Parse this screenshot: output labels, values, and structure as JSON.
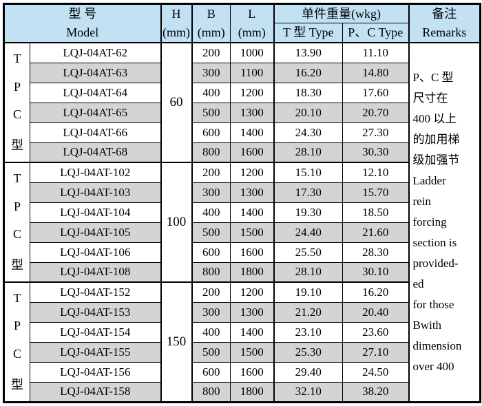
{
  "header": {
    "model_zh": "型  号",
    "model_en": "Model",
    "h_sym": "H",
    "h_unit": "(mm)",
    "b_sym": "B",
    "b_unit": "(mm)",
    "l_sym": "L",
    "l_unit": "(mm)",
    "weight": "单件重量(wkg)",
    "weight_t": "T 型 Type",
    "weight_pc": "P、C Type",
    "remarks_zh": "备注",
    "remarks_en": "Remarks"
  },
  "colors": {
    "header_bg": "#c2e2f4",
    "row_alt_bg": "#d4d4d4",
    "border": "#000000"
  },
  "groups": [
    {
      "type_label": [
        "T",
        "P",
        "C",
        "型"
      ],
      "h": "60",
      "rows": [
        {
          "model": "LQJ-04AT-62",
          "b": "200",
          "l": "1000",
          "t": "13.90",
          "pc": "11.10"
        },
        {
          "model": "LQJ-04AT-63",
          "b": "300",
          "l": "1100",
          "t": "16.20",
          "pc": "14.80"
        },
        {
          "model": "LQJ-04AT-64",
          "b": "400",
          "l": "1200",
          "t": "18.30",
          "pc": "17.60"
        },
        {
          "model": "LQJ-04AT-65",
          "b": "500",
          "l": "1300",
          "t": "20.10",
          "pc": "20.70"
        },
        {
          "model": "LQJ-04AT-66",
          "b": "600",
          "l": "1400",
          "t": "24.30",
          "pc": "27.30"
        },
        {
          "model": "LQJ-04AT-68",
          "b": "800",
          "l": "1600",
          "t": "28.10",
          "pc": "30.30"
        }
      ]
    },
    {
      "type_label": [
        "T",
        "P",
        "C",
        "型"
      ],
      "h": "100",
      "rows": [
        {
          "model": "LQJ-04AT-102",
          "b": "200",
          "l": "1200",
          "t": "15.10",
          "pc": "12.10"
        },
        {
          "model": "LQJ-04AT-103",
          "b": "300",
          "l": "1300",
          "t": "17.30",
          "pc": "15.70"
        },
        {
          "model": "LQJ-04AT-104",
          "b": "400",
          "l": "1400",
          "t": "19.30",
          "pc": "18.50"
        },
        {
          "model": "LQJ-04AT-105",
          "b": "500",
          "l": "1500",
          "t": "24.40",
          "pc": "21.60"
        },
        {
          "model": "LQJ-04AT-106",
          "b": "600",
          "l": "1600",
          "t": "25.50",
          "pc": "28.30"
        },
        {
          "model": "LQJ-04AT-108",
          "b": "800",
          "l": "1800",
          "t": "28.10",
          "pc": "30.10"
        }
      ]
    },
    {
      "type_label": [
        "T",
        "P",
        "C",
        "型"
      ],
      "h": "150",
      "rows": [
        {
          "model": "LQJ-04AT-152",
          "b": "200",
          "l": "1200",
          "t": "19.10",
          "pc": "16.20"
        },
        {
          "model": "LQJ-04AT-153",
          "b": "300",
          "l": "1300",
          "t": "21.20",
          "pc": "20.40"
        },
        {
          "model": "LQJ-04AT-154",
          "b": "400",
          "l": "1400",
          "t": "23.10",
          "pc": "23.60"
        },
        {
          "model": "LQJ-04AT-155",
          "b": "500",
          "l": "1500",
          "t": "25.30",
          "pc": "27.10"
        },
        {
          "model": "LQJ-04AT-156",
          "b": "600",
          "l": "1600",
          "t": "29.40",
          "pc": "24.50"
        },
        {
          "model": "LQJ-04AT-158",
          "b": "800",
          "l": "1800",
          "t": "32.10",
          "pc": "38.20"
        }
      ]
    }
  ],
  "remarks_lines": [
    "P、C 型",
    "尺寸在",
    "400 以上",
    "的加用梯",
    "级加强节",
    "Ladder",
    "rein",
    "forcing",
    "section is",
    "provided-",
    "ed",
    "for those",
    "Bwith",
    "dimension",
    "over 400"
  ]
}
